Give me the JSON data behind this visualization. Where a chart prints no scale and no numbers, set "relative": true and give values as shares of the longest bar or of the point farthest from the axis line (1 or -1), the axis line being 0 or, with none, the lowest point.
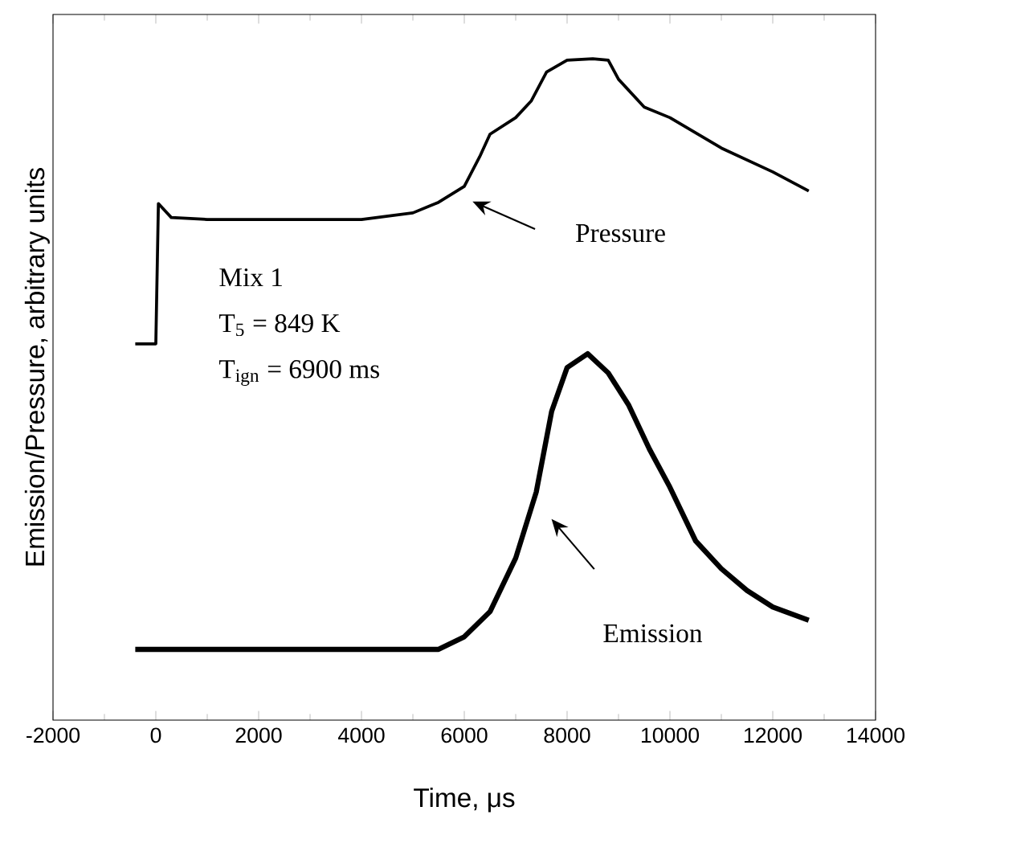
{
  "chart_data": {
    "type": "line",
    "relative": true,
    "xlabel": "Time, μs",
    "ylabel": "Emission/Pressure, arbitrary units",
    "xlim": [
      -2000,
      14000
    ],
    "xticks": [
      -2000,
      0,
      2000,
      4000,
      6000,
      8000,
      10000,
      12000,
      14000
    ],
    "series": [
      {
        "color": "#000000",
        "x": [
          -400,
          0,
          50,
          300,
          1000,
          2000,
          3000,
          4000,
          5000,
          5500,
          6000,
          6300,
          6500,
          7000,
          7300,
          7600,
          8000,
          8500,
          8800,
          9000,
          9500,
          10000,
          11000,
          12000,
          12700
        ],
        "values": [
          0.569,
          0.569,
          0.781,
          0.76,
          0.757,
          0.757,
          0.757,
          0.757,
          0.767,
          0.783,
          0.807,
          0.852,
          0.886,
          0.911,
          0.936,
          0.98,
          0.998,
          1,
          0.998,
          0.969,
          0.927,
          0.911,
          0.865,
          0.829,
          0.8
        ]
      },
      {
        "color": "#000000",
        "x": [
          -400,
          1000,
          2000,
          3000,
          4000,
          5000,
          5500,
          6000,
          6500,
          7000,
          7400,
          7700,
          8000,
          8400,
          8800,
          9200,
          9600,
          10000,
          10500,
          11000,
          11500,
          12000,
          12700
        ],
        "values": [
          0.107,
          0.107,
          0.107,
          0.107,
          0.107,
          0.107,
          0.107,
          0.126,
          0.164,
          0.245,
          0.345,
          0.467,
          0.533,
          0.554,
          0.525,
          0.476,
          0.41,
          0.352,
          0.271,
          0.229,
          0.196,
          0.171,
          0.151
        ]
      }
    ],
    "annotations": [
      "Pressure",
      "Emission",
      "Mix 1",
      "T$_{5}$ = 849 K",
      "T$_{ign}$ = 6900 ms"
    ],
    "marker": "none",
    "line_style": "solid"
  }
}
